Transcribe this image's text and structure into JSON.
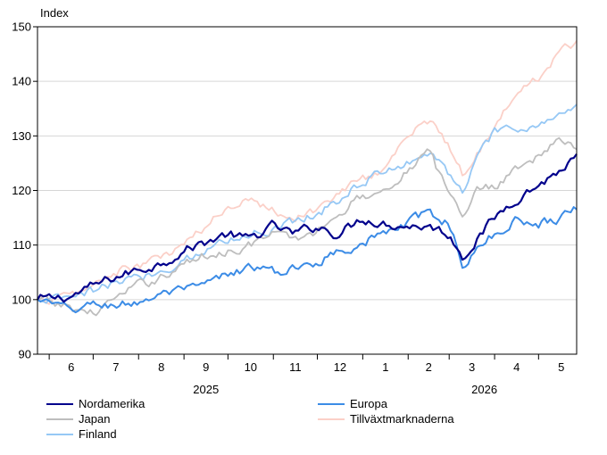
{
  "chart_data": {
    "type": "line",
    "ylabel": "Index",
    "ylim": [
      90,
      150
    ],
    "yticks": [
      90,
      100,
      110,
      120,
      130,
      140,
      150
    ],
    "month_labels": [
      "6",
      "7",
      "8",
      "9",
      "10",
      "11",
      "12",
      "1",
      "2",
      "3",
      "4",
      "5"
    ],
    "year_labels": [
      "2025",
      "2026"
    ],
    "grid": "horizontal",
    "legend_position": "bottom",
    "x_start": "2025-05-24",
    "x_end": "2026-05-27",
    "x_anchors": [
      "2025-05-24",
      "2025-06-15",
      "2025-07-01",
      "2025-07-15",
      "2025-08-01",
      "2025-08-15",
      "2025-09-01",
      "2025-09-15",
      "2025-10-01",
      "2025-10-15",
      "2025-11-01",
      "2025-11-15",
      "2025-12-01",
      "2025-12-15",
      "2026-01-01",
      "2026-01-15",
      "2026-02-01",
      "2026-02-15",
      "2026-03-01",
      "2026-03-10",
      "2026-03-20",
      "2026-04-01",
      "2026-04-15",
      "2026-05-01",
      "2026-05-15",
      "2026-05-27"
    ],
    "series": [
      {
        "name": "Nordamerika",
        "color": "#00008C",
        "width": 2.2,
        "values": [
          100,
          100.5,
          102.5,
          104,
          105.5,
          106.5,
          109,
          110.5,
          112,
          111,
          113.5,
          112,
          113.5,
          112,
          115,
          114,
          113.5,
          113.5,
          112,
          108,
          111,
          115,
          118.5,
          121,
          123.5,
          126
        ]
      },
      {
        "name": "Europa",
        "color": "#3C8CE6",
        "width": 2.0,
        "values": [
          100,
          98,
          99,
          99,
          99.5,
          101,
          101.5,
          102.5,
          104.5,
          106,
          105,
          105.5,
          107,
          109,
          110.5,
          112,
          114,
          116,
          114,
          106.5,
          109,
          112,
          114.5,
          114,
          115,
          117
        ]
      },
      {
        "name": "Japan",
        "color": "#BEBEBE",
        "width": 1.8,
        "values": [
          100,
          98.5,
          97.5,
          100,
          102.5,
          104,
          106.5,
          108,
          109,
          110,
          112,
          111,
          112.5,
          116,
          119,
          120,
          124,
          127,
          119,
          116,
          120,
          121,
          124,
          126.5,
          129,
          128
        ]
      },
      {
        "name": "Tillväxtmarknaderna",
        "color": "#FBD0C8",
        "width": 1.8,
        "values": [
          100,
          100.5,
          102.5,
          105,
          106,
          107.5,
          110,
          113,
          117,
          119,
          116.5,
          115,
          116.5,
          119.5,
          122,
          124,
          130,
          133,
          128,
          123,
          127,
          132,
          137,
          141,
          145,
          147.5
        ]
      },
      {
        "name": "Finland",
        "color": "#96C8F5",
        "width": 1.8,
        "values": [
          100,
          100,
          101.5,
          103,
          104,
          105,
          107.5,
          109,
          111,
          112,
          113,
          114.5,
          116,
          118,
          122,
          123,
          125.5,
          127,
          123,
          120,
          126,
          130.5,
          131,
          132,
          134,
          135
        ]
      }
    ]
  }
}
